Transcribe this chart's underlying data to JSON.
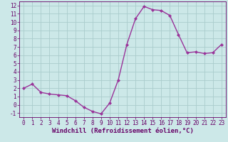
{
  "x": [
    0,
    1,
    2,
    3,
    4,
    5,
    6,
    7,
    8,
    9,
    10,
    11,
    12,
    13,
    14,
    15,
    16,
    17,
    18,
    19,
    20,
    21,
    22,
    23
  ],
  "y": [
    2.0,
    2.5,
    1.5,
    1.3,
    1.2,
    1.1,
    0.5,
    -0.3,
    -0.8,
    -1.1,
    0.2,
    3.0,
    7.3,
    10.4,
    11.9,
    11.5,
    11.4,
    10.8,
    8.5,
    6.3,
    6.4,
    6.2,
    6.3,
    7.3
  ],
  "line_color": "#993399",
  "marker": "D",
  "marker_size": 2.0,
  "bg_color": "#cce8e8",
  "grid_color": "#aacccc",
  "xlabel": "Windchill (Refroidissement éolien,°C)",
  "ylim": [
    -1.5,
    12.5
  ],
  "xlim": [
    -0.5,
    23.5
  ],
  "yticks": [
    -1,
    0,
    1,
    2,
    3,
    4,
    5,
    6,
    7,
    8,
    9,
    10,
    11,
    12
  ],
  "xticks": [
    0,
    1,
    2,
    3,
    4,
    5,
    6,
    7,
    8,
    9,
    10,
    11,
    12,
    13,
    14,
    15,
    16,
    17,
    18,
    19,
    20,
    21,
    22,
    23
  ],
  "tick_fontsize": 5.5,
  "xlabel_fontsize": 6.5,
  "axis_color": "#660066",
  "linewidth": 1.0
}
